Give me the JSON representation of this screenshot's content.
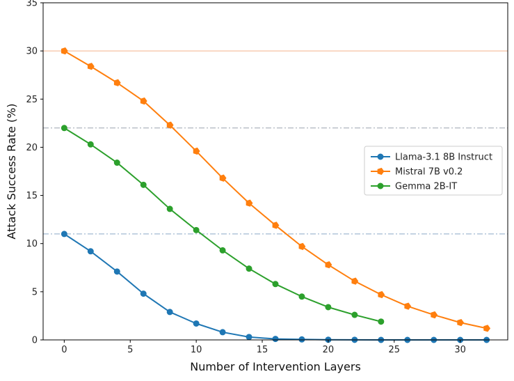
{
  "chart_data": {
    "type": "line",
    "xlabel": "Number of Intervention Layers",
    "ylabel": "Attack Success Rate (%)",
    "xlim": [
      -1.6,
      33.6
    ],
    "ylim": [
      0,
      35
    ],
    "xticks": [
      0,
      5,
      10,
      15,
      20,
      25,
      30
    ],
    "yticks": [
      0,
      5,
      10,
      15,
      20,
      25,
      30,
      35
    ],
    "legend_position": "center-right",
    "reference_lines": [
      {
        "y": 30,
        "color": "#f4b38a",
        "style": "solid"
      },
      {
        "y": 22,
        "color": "#9aa3ad",
        "style": "dashdot"
      },
      {
        "y": 11,
        "color": "#8aa9c8",
        "style": "dashdot"
      }
    ],
    "series": [
      {
        "name": "Llama-3.1 8B Instruct",
        "color": "#1f77b4",
        "marker": "circle",
        "x": [
          0,
          2,
          4,
          6,
          8,
          10,
          12,
          14,
          16,
          18,
          20,
          22,
          24,
          26,
          28,
          30,
          32
        ],
        "values": [
          11.0,
          9.2,
          7.1,
          4.8,
          2.9,
          1.7,
          0.8,
          0.3,
          0.1,
          0.05,
          0.02,
          0.01,
          0.0,
          0.0,
          0.0,
          0.0,
          0.0
        ]
      },
      {
        "name": "Mistral 7B v0.2",
        "color": "#ff7f0e",
        "marker": "pentagon",
        "x": [
          0,
          2,
          4,
          6,
          8,
          10,
          12,
          14,
          16,
          18,
          20,
          22,
          24,
          26,
          28,
          30,
          32
        ],
        "values": [
          30.0,
          28.4,
          26.7,
          24.8,
          22.3,
          19.6,
          16.8,
          14.2,
          11.9,
          9.7,
          7.8,
          6.1,
          4.7,
          3.5,
          2.6,
          1.8,
          1.2
        ]
      },
      {
        "name": "Gemma 2B-IT",
        "color": "#2ca02c",
        "marker": "circle",
        "x": [
          0,
          2,
          4,
          6,
          8,
          10,
          12,
          14,
          16,
          18,
          20,
          22,
          24
        ],
        "values": [
          22.0,
          20.3,
          18.4,
          16.1,
          13.6,
          11.4,
          9.3,
          7.4,
          5.8,
          4.5,
          3.4,
          2.6,
          1.9
        ]
      }
    ]
  }
}
